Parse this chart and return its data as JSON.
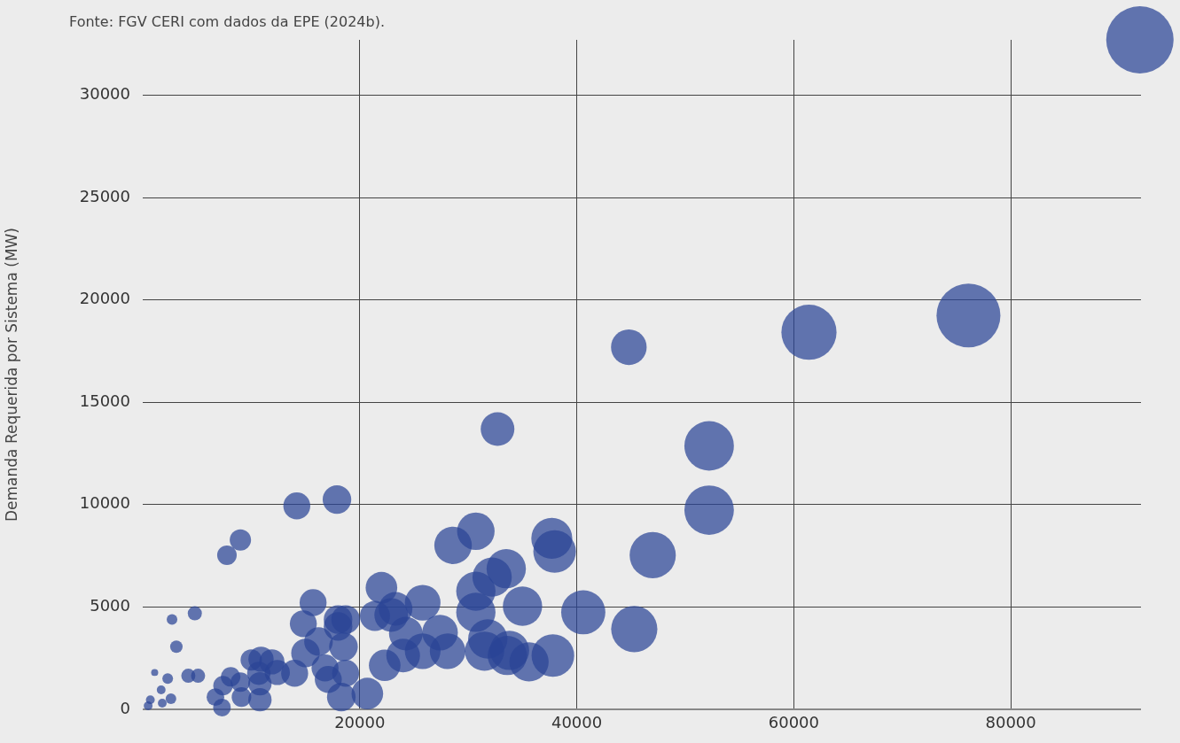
{
  "chart_data": {
    "type": "bubble",
    "ylabel": "Demanda Requerida por Sistema (MW)",
    "annotations": [
      "Fonte: FGV CERI com dados da EPE (2024b)."
    ],
    "xlim": [
      0,
      92000
    ],
    "xticks": [
      20000,
      40000,
      60000,
      80000
    ],
    "ylim": [
      0,
      32700
    ],
    "yticks": [
      0,
      5000,
      10000,
      15000,
      20000,
      25000,
      30000
    ],
    "grid": true,
    "legend": false,
    "series": [
      {
        "color": "#2a4496",
        "x": [
          91900,
          76100,
          61400,
          44800,
          52200,
          52200,
          47000,
          45300,
          40600,
          32700,
          37700,
          37960,
          37800,
          35000,
          35600,
          33600,
          33500,
          32200,
          30700,
          28600,
          30700,
          30700,
          31800,
          31500,
          33800,
          28100,
          27400,
          25800,
          25800,
          24000,
          24250,
          22900,
          23300,
          22000,
          21400,
          22300,
          20700,
          17900,
          14200,
          9000,
          7760,
          15700,
          14800,
          18000,
          18700,
          18000,
          4800,
          2700,
          3100,
          15000,
          16200,
          18500,
          18700,
          16800,
          17100,
          18300,
          14000,
          11900,
          12400,
          10900,
          10000,
          10700,
          10800,
          10800,
          9100,
          8100,
          9000,
          7400,
          6700,
          7300,
          4200,
          5100,
          1100,
          2300,
          1700,
          1800,
          2600,
          700,
          500
        ],
        "values": [
          32700,
          19240,
          18420,
          17690,
          12870,
          9730,
          7530,
          3920,
          4740,
          13690,
          8350,
          7710,
          2630,
          5040,
          2320,
          2630,
          6870,
          6460,
          8700,
          8010,
          5770,
          4740,
          3440,
          2840,
          2880,
          2840,
          3750,
          5210,
          2840,
          2630,
          3700,
          4610,
          4910,
          5940,
          4560,
          2150,
          770,
          10250,
          9940,
          8270,
          7530,
          5210,
          4180,
          4390,
          4390,
          4050,
          4690,
          4390,
          3060,
          2750,
          3310,
          3060,
          1760,
          2020,
          1460,
          600,
          1760,
          2320,
          1800,
          2450,
          2410,
          1760,
          1250,
          470,
          600,
          1590,
          1330,
          1160,
          600,
          90,
          1640,
          1640,
          1800,
          1500,
          950,
          300,
          520,
          470,
          170
        ],
        "sizes": [
          1,
          0.9,
          0.67,
          0.28,
          0.54,
          0.54,
          0.47,
          0.47,
          0.43,
          0.25,
          0.37,
          0.4,
          0.4,
          0.34,
          0.34,
          0.34,
          0.34,
          0.34,
          0.31,
          0.31,
          0.34,
          0.34,
          0.34,
          0.34,
          0.34,
          0.28,
          0.28,
          0.28,
          0.28,
          0.25,
          0.25,
          0.25,
          0.25,
          0.22,
          0.2,
          0.22,
          0.22,
          0.18,
          0.16,
          0.1,
          0.084,
          0.16,
          0.16,
          0.18,
          0.18,
          0.18,
          0.044,
          0.025,
          0.034,
          0.18,
          0.18,
          0.18,
          0.16,
          0.16,
          0.16,
          0.18,
          0.16,
          0.14,
          0.14,
          0.14,
          0.1,
          0.12,
          0.12,
          0.12,
          0.084,
          0.084,
          0.084,
          0.084,
          0.069,
          0.069,
          0.044,
          0.044,
          0.011,
          0.025,
          0.017,
          0.017,
          0.025,
          0.017,
          0.017
        ]
      }
    ]
  }
}
